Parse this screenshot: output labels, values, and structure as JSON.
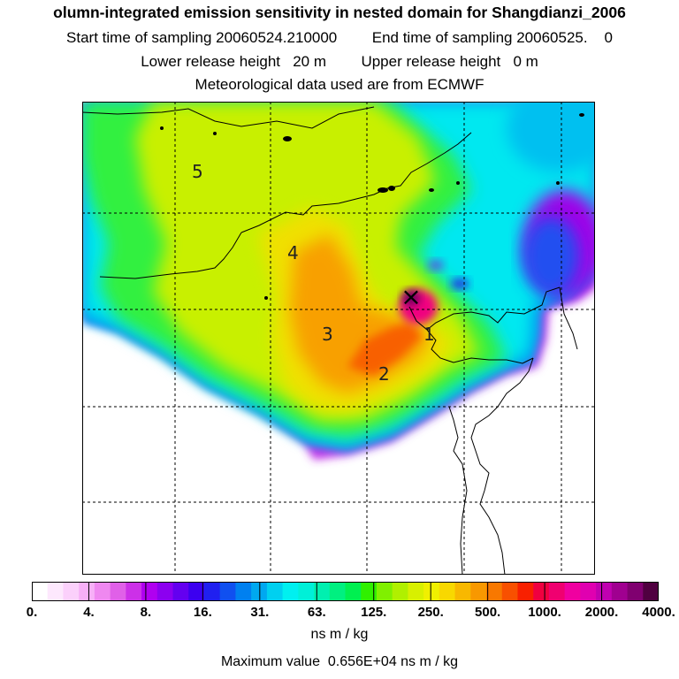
{
  "title": {
    "line1": "olumn-integrated emission sensitivity in nested domain for Shangdianzi_2006",
    "start_label": "Start time of sampling",
    "start_value": "20060524.210000",
    "end_label": "End time of sampling",
    "end_value": "20060525.",
    "end_suffix": "0",
    "lower_label": "Lower release height",
    "lower_value": "20 m",
    "upper_label": "Upper release height",
    "upper_value": "0 m",
    "line4": "Meteorological data used are from ECMWF"
  },
  "map": {
    "region_labels": [
      "5",
      "4",
      "3",
      "2",
      "1"
    ],
    "receptor_marker": "×"
  },
  "colorbar": {
    "tick_labels": [
      "0.",
      "4.",
      "8.",
      "16.",
      "31.",
      "63.",
      "125.",
      "250.",
      "500.",
      "1000.",
      "2000.",
      "4000."
    ],
    "colors": [
      "#ffffff",
      "#fde8fd",
      "#fbd0fb",
      "#f7b0f7",
      "#ef88f0",
      "#e060e8",
      "#cc30e8",
      "#b000f0",
      "#8c00f0",
      "#6400f0",
      "#3c00f0",
      "#2020f0",
      "#1050f0",
      "#0080f0",
      "#00a8f0",
      "#00d0f0",
      "#00f0f0",
      "#00f0d8",
      "#00f0b0",
      "#00f080",
      "#00f050",
      "#30f000",
      "#80f000",
      "#b0f000",
      "#d8f000",
      "#f0f000",
      "#f8d800",
      "#f8b800",
      "#f89800",
      "#f87800",
      "#f85000",
      "#f82000",
      "#f00040",
      "#f00070",
      "#f000a0",
      "#e000b0",
      "#c000b0",
      "#a00090",
      "#800070",
      "#500040"
    ],
    "units": "ns m / kg",
    "max_label": "Maximum value",
    "max_value": "0.656E+04 ns m / kg"
  }
}
